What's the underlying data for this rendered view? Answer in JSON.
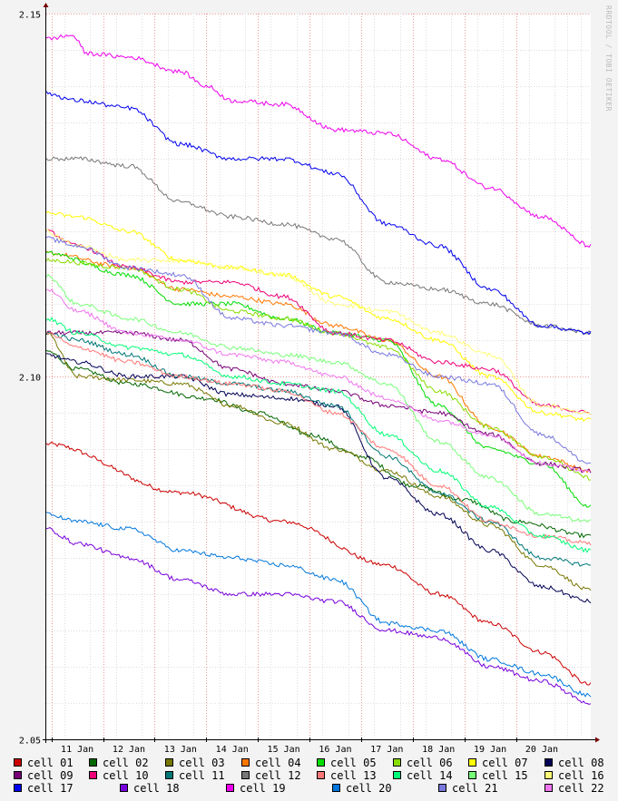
{
  "watermark": "RRDTOOL / TOBI OETIKER",
  "chart_data": {
    "type": "line",
    "title": "",
    "xlabel": "",
    "ylabel": "",
    "ylim": [
      2.05,
      2.15
    ],
    "xlim": [
      10.4,
      20.95
    ],
    "yticks": [
      {
        "v": 2.05,
        "label": "2.05"
      },
      {
        "v": 2.1,
        "label": "2.10"
      },
      {
        "v": 2.15,
        "label": "2.15"
      }
    ],
    "xticks": [
      {
        "v": 11,
        "label": "11 Jan"
      },
      {
        "v": 12,
        "label": "12 Jan"
      },
      {
        "v": 13,
        "label": "13 Jan"
      },
      {
        "v": 14,
        "label": "14 Jan"
      },
      {
        "v": 15,
        "label": "15 Jan"
      },
      {
        "v": 16,
        "label": "16 Jan"
      },
      {
        "v": 17,
        "label": "17 Jan"
      },
      {
        "v": 18,
        "label": "18 Jan"
      },
      {
        "v": 19,
        "label": "19 Jan"
      },
      {
        "v": 20,
        "label": "20 Jan"
      }
    ],
    "grid": true,
    "legend_position": "bottom",
    "series": [
      {
        "name": "cell 01",
        "color": "#cc0000",
        "x": [
          10.4,
          13,
          15,
          17,
          18,
          19,
          20,
          20.95
        ],
        "y": [
          2.0907,
          2.084,
          2.08,
          2.074,
          2.07,
          2.066,
          2.062,
          2.0575
        ]
      },
      {
        "name": "cell 02",
        "color": "#006600",
        "x": [
          10.4,
          11,
          12,
          13.5,
          14.5,
          15.5,
          16.5,
          17.5,
          18.5,
          19.5,
          20.95
        ],
        "y": [
          2.1035,
          2.101,
          2.099,
          2.097,
          2.095,
          2.092,
          2.089,
          2.085,
          2.083,
          2.08,
          2.078
        ]
      },
      {
        "name": "cell 03",
        "color": "#777700",
        "x": [
          10.4,
          11,
          12,
          13,
          14,
          15,
          16,
          17,
          18,
          19,
          20,
          20.95
        ],
        "y": [
          2.106,
          2.1,
          2.0995,
          2.099,
          2.096,
          2.0935,
          2.09,
          2.087,
          2.0835,
          2.0795,
          2.074,
          2.0705
        ]
      },
      {
        "name": "cell 04",
        "color": "#ff7700",
        "x": [
          10.4,
          12,
          13,
          14,
          15,
          16,
          17,
          18,
          19,
          20,
          20.95
        ],
        "y": [
          2.117,
          2.115,
          2.112,
          2.111,
          2.11,
          2.107,
          2.105,
          2.1,
          2.093,
          2.089,
          2.087
        ]
      },
      {
        "name": "cell 05",
        "color": "#00dd00",
        "x": [
          10.4,
          12,
          13,
          14,
          15,
          16,
          17,
          18,
          19,
          20,
          20.95
        ],
        "y": [
          2.117,
          2.114,
          2.11,
          2.11,
          2.108,
          2.106,
          2.105,
          2.096,
          2.09,
          2.088,
          2.082
        ]
      },
      {
        "name": "cell 06",
        "color": "#88dd00",
        "x": [
          10.4,
          12,
          13,
          14,
          15,
          16,
          17,
          18,
          19,
          20,
          20.95
        ],
        "y": [
          2.116,
          2.115,
          2.112,
          2.109,
          2.108,
          2.106,
          2.104,
          2.098,
          2.093,
          2.089,
          2.086
        ]
      },
      {
        "name": "cell 07",
        "color": "#ffff00",
        "x": [
          10.4,
          11,
          12,
          13,
          14,
          15,
          16,
          17,
          18,
          19,
          20,
          20.95
        ],
        "y": [
          2.1225,
          2.122,
          2.12,
          2.116,
          2.115,
          2.114,
          2.111,
          2.108,
          2.105,
          2.1,
          2.095,
          2.094
        ]
      },
      {
        "name": "cell 08",
        "color": "#000055",
        "x": [
          10.4,
          11,
          12,
          13,
          14,
          15,
          16,
          17,
          18,
          19,
          20,
          20.95
        ],
        "y": [
          2.103,
          2.102,
          2.1,
          2.1,
          2.0975,
          2.097,
          2.096,
          2.086,
          2.081,
          2.076,
          2.071,
          2.069
        ]
      },
      {
        "name": "cell 09",
        "color": "#770077",
        "x": [
          10.4,
          11,
          12,
          13,
          14,
          15,
          16,
          17,
          18,
          19,
          20,
          20.95
        ],
        "y": [
          2.106,
          2.106,
          2.106,
          2.105,
          2.101,
          2.099,
          2.098,
          2.096,
          2.095,
          2.092,
          2.088,
          2.087
        ]
      },
      {
        "name": "cell 10",
        "color": "#ee0077",
        "x": [
          10.4,
          11,
          12,
          13,
          14,
          15,
          16,
          17,
          18,
          19,
          20,
          20.95
        ],
        "y": [
          2.12,
          2.118,
          2.115,
          2.113,
          2.113,
          2.111,
          2.106,
          2.105,
          2.102,
          2.101,
          2.096,
          2.095
        ]
      },
      {
        "name": "cell 11",
        "color": "#007777",
        "x": [
          10.4,
          11,
          12,
          13,
          14,
          15,
          16,
          17,
          18,
          19,
          20,
          20.95
        ],
        "y": [
          2.106,
          2.105,
          2.103,
          2.1,
          2.099,
          2.098,
          2.096,
          2.089,
          2.084,
          2.08,
          2.075,
          2.074
        ]
      },
      {
        "name": "cell 12",
        "color": "#777777",
        "x": [
          10.4,
          11,
          12,
          13,
          14,
          15,
          16,
          17,
          18,
          19,
          20,
          20.95
        ],
        "y": [
          2.13,
          2.13,
          2.129,
          2.124,
          2.122,
          2.121,
          2.119,
          2.113,
          2.112,
          2.11,
          2.107,
          2.106
        ]
      },
      {
        "name": "cell 13",
        "color": "#ff7777",
        "x": [
          10.4,
          11,
          12,
          13,
          14,
          15,
          16,
          17,
          18,
          19,
          20,
          20.95
        ],
        "y": [
          2.106,
          2.104,
          2.102,
          2.1,
          2.099,
          2.098,
          2.095,
          2.09,
          2.085,
          2.08,
          2.078,
          2.077
        ]
      },
      {
        "name": "cell 14",
        "color": "#00ff77",
        "x": [
          10.4,
          11,
          12,
          13,
          14,
          15,
          16,
          17,
          18,
          19,
          20,
          20.95
        ],
        "y": [
          2.108,
          2.106,
          2.104,
          2.103,
          2.1,
          2.099,
          2.098,
          2.092,
          2.087,
          2.082,
          2.078,
          2.076
        ]
      },
      {
        "name": "cell 15",
        "color": "#77ff77",
        "x": [
          10.4,
          11,
          12,
          13,
          14,
          15,
          16,
          17,
          18,
          19,
          20,
          20.95
        ],
        "y": [
          2.114,
          2.11,
          2.108,
          2.106,
          2.104,
          2.103,
          2.102,
          2.099,
          2.091,
          2.086,
          2.081,
          2.08
        ]
      },
      {
        "name": "cell 16",
        "color": "#ffff77",
        "x": [
          10.4,
          11,
          12,
          13,
          14,
          15,
          16,
          17,
          18,
          19,
          20,
          20.95
        ],
        "y": [
          2.12,
          2.118,
          2.116,
          2.116,
          2.115,
          2.114,
          2.11,
          2.109,
          2.106,
          2.103,
          2.096,
          2.095
        ]
      },
      {
        "name": "cell 17",
        "color": "#0000ee",
        "x": [
          10.4,
          11,
          12,
          13,
          14,
          15,
          16,
          17,
          18,
          19,
          20,
          20.95
        ],
        "y": [
          2.139,
          2.138,
          2.137,
          2.132,
          2.13,
          2.13,
          2.128,
          2.121,
          2.118,
          2.112,
          2.107,
          2.106
        ]
      },
      {
        "name": "cell 18",
        "color": "#7700dd",
        "x": [
          10.4,
          11,
          12,
          13,
          14,
          15,
          16,
          17,
          18,
          19,
          20,
          20.95
        ],
        "y": [
          2.079,
          2.077,
          2.075,
          2.072,
          2.07,
          2.07,
          2.069,
          2.065,
          2.064,
          2.06,
          2.058,
          2.055
        ]
      },
      {
        "name": "cell 19",
        "color": "#ee00ee",
        "x": [
          10.4,
          10.9,
          11.2,
          12,
          13,
          13.5,
          14,
          15,
          16,
          17,
          18,
          19,
          20,
          20.95
        ],
        "y": [
          2.1465,
          2.147,
          2.1445,
          2.144,
          2.142,
          2.14,
          2.138,
          2.1375,
          2.134,
          2.1335,
          2.13,
          2.126,
          2.122,
          2.118
        ]
      },
      {
        "name": "cell 20",
        "color": "#0077dd",
        "x": [
          10.4,
          11,
          12,
          13,
          14,
          15,
          16,
          17,
          18,
          19,
          20,
          20.95
        ],
        "y": [
          2.081,
          2.08,
          2.079,
          2.076,
          2.075,
          2.074,
          2.072,
          2.066,
          2.065,
          2.061,
          2.059,
          2.056
        ]
      },
      {
        "name": "cell 21",
        "color": "#7777dd",
        "x": [
          10.4,
          11,
          12,
          13,
          14,
          15,
          16,
          17,
          18,
          19,
          20,
          20.95
        ],
        "y": [
          2.119,
          2.118,
          2.115,
          2.114,
          2.108,
          2.107,
          2.106,
          2.103,
          2.1,
          2.099,
          2.092,
          2.088
        ]
      },
      {
        "name": "cell 22",
        "color": "#ee77ee",
        "x": [
          10.4,
          11,
          12,
          13,
          14,
          15,
          16,
          17,
          18,
          19,
          20,
          20.95
        ],
        "y": [
          2.112,
          2.109,
          2.106,
          2.105,
          2.103,
          2.102,
          2.1,
          2.097,
          2.094,
          2.092,
          2.088,
          2.087
        ]
      }
    ]
  }
}
